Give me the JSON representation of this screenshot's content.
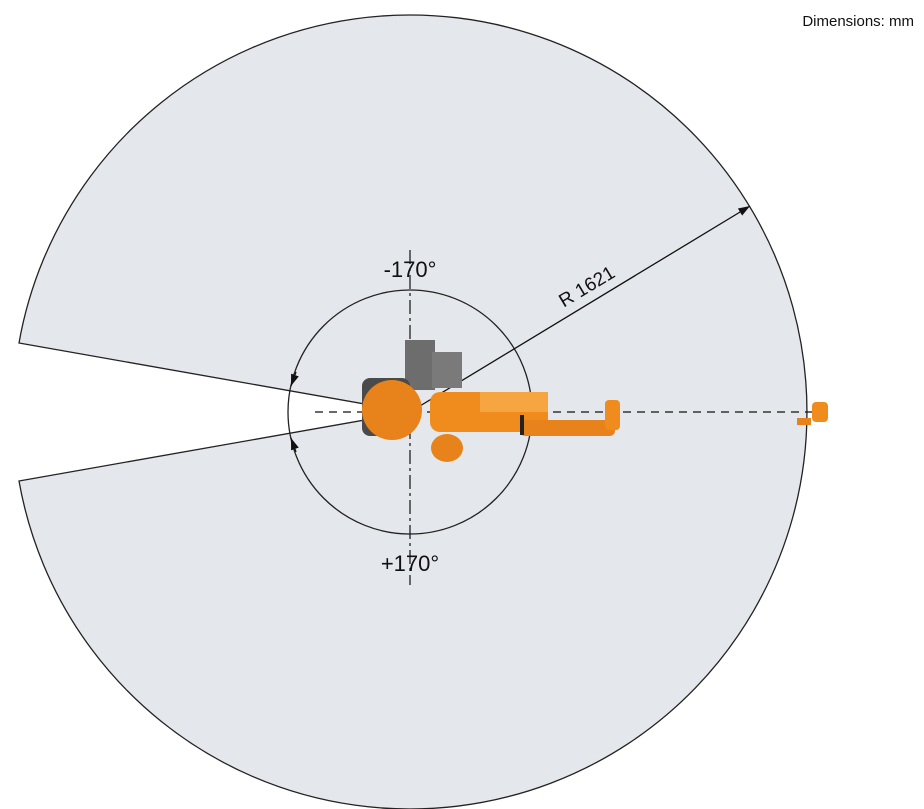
{
  "header": {
    "units": "Dimensions: mm"
  },
  "diagram": {
    "angle_negative": "-170°",
    "angle_positive": "+170°",
    "radius_label": "R 1621"
  }
}
